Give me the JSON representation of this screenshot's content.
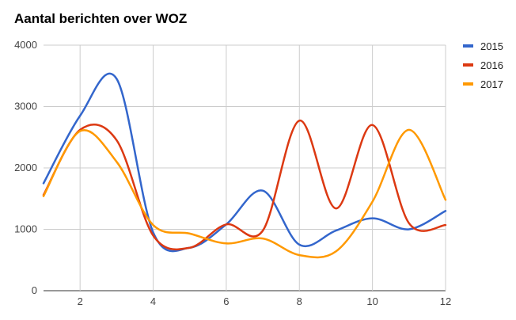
{
  "chart_data": {
    "type": "line",
    "title": "Aantal berichten over WOZ",
    "xlabel": "",
    "ylabel": "",
    "xlim": [
      1,
      12
    ],
    "ylim": [
      0,
      4000
    ],
    "x_ticks": [
      2,
      4,
      6,
      8,
      10,
      12
    ],
    "y_ticks": [
      0,
      1000,
      2000,
      3000,
      4000
    ],
    "grid": true,
    "legend_position": "right",
    "x": [
      1,
      2,
      3,
      4,
      5,
      6,
      7,
      8,
      9,
      10,
      11,
      12
    ],
    "series": [
      {
        "name": "2015",
        "color": "#3366cc",
        "values": [
          1750,
          2850,
          3450,
          950,
          700,
          1080,
          1630,
          750,
          980,
          1180,
          1000,
          1300
        ]
      },
      {
        "name": "2016",
        "color": "#dc3912",
        "values": [
          1560,
          2620,
          2450,
          900,
          700,
          1080,
          980,
          2770,
          1340,
          2700,
          1100,
          1070
        ]
      },
      {
        "name": "2017",
        "color": "#ff9900",
        "values": [
          1540,
          2600,
          2100,
          1070,
          930,
          770,
          850,
          580,
          640,
          1450,
          2620,
          1480
        ]
      }
    ]
  }
}
